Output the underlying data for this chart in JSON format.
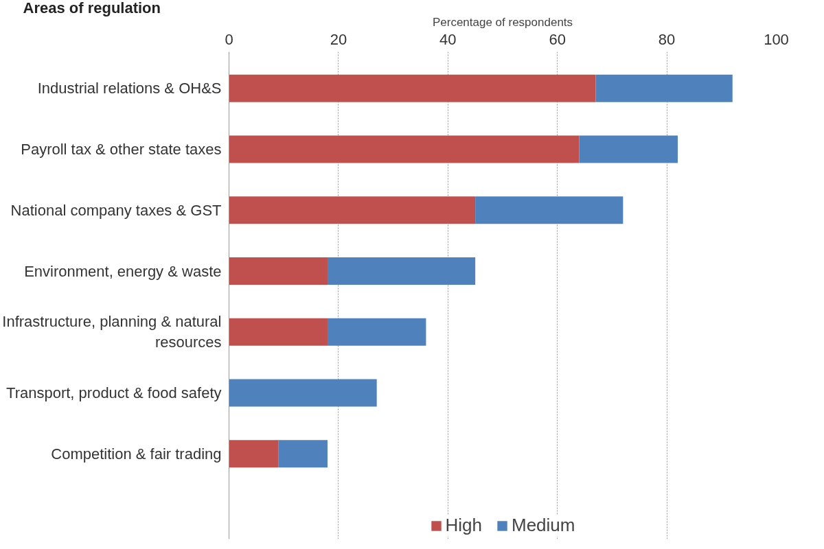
{
  "chart_data": {
    "type": "bar",
    "orientation": "horizontal",
    "stacked": true,
    "xlabel": "Percentage of respondents",
    "annotations": [
      "Areas of regulation"
    ],
    "categories": [
      "Industrial relations & OH&S",
      "Payroll tax & other state taxes",
      "National company taxes & GST",
      "Environment, energy & waste",
      "Infrastructure, planning & natural resources",
      "Transport, product & food safety",
      "Competition & fair trading"
    ],
    "series": [
      {
        "name": "High",
        "color": "#c0504d",
        "values": [
          67,
          64,
          45,
          18,
          18,
          0,
          9
        ]
      },
      {
        "name": "Medium",
        "color": "#4f81bd",
        "values": [
          25,
          18,
          27,
          27,
          18,
          27,
          9
        ]
      }
    ],
    "xlim": [
      0,
      100
    ],
    "xticks": [
      0,
      20,
      40,
      60,
      80,
      100
    ],
    "grid": "x",
    "legend": "bottom"
  }
}
